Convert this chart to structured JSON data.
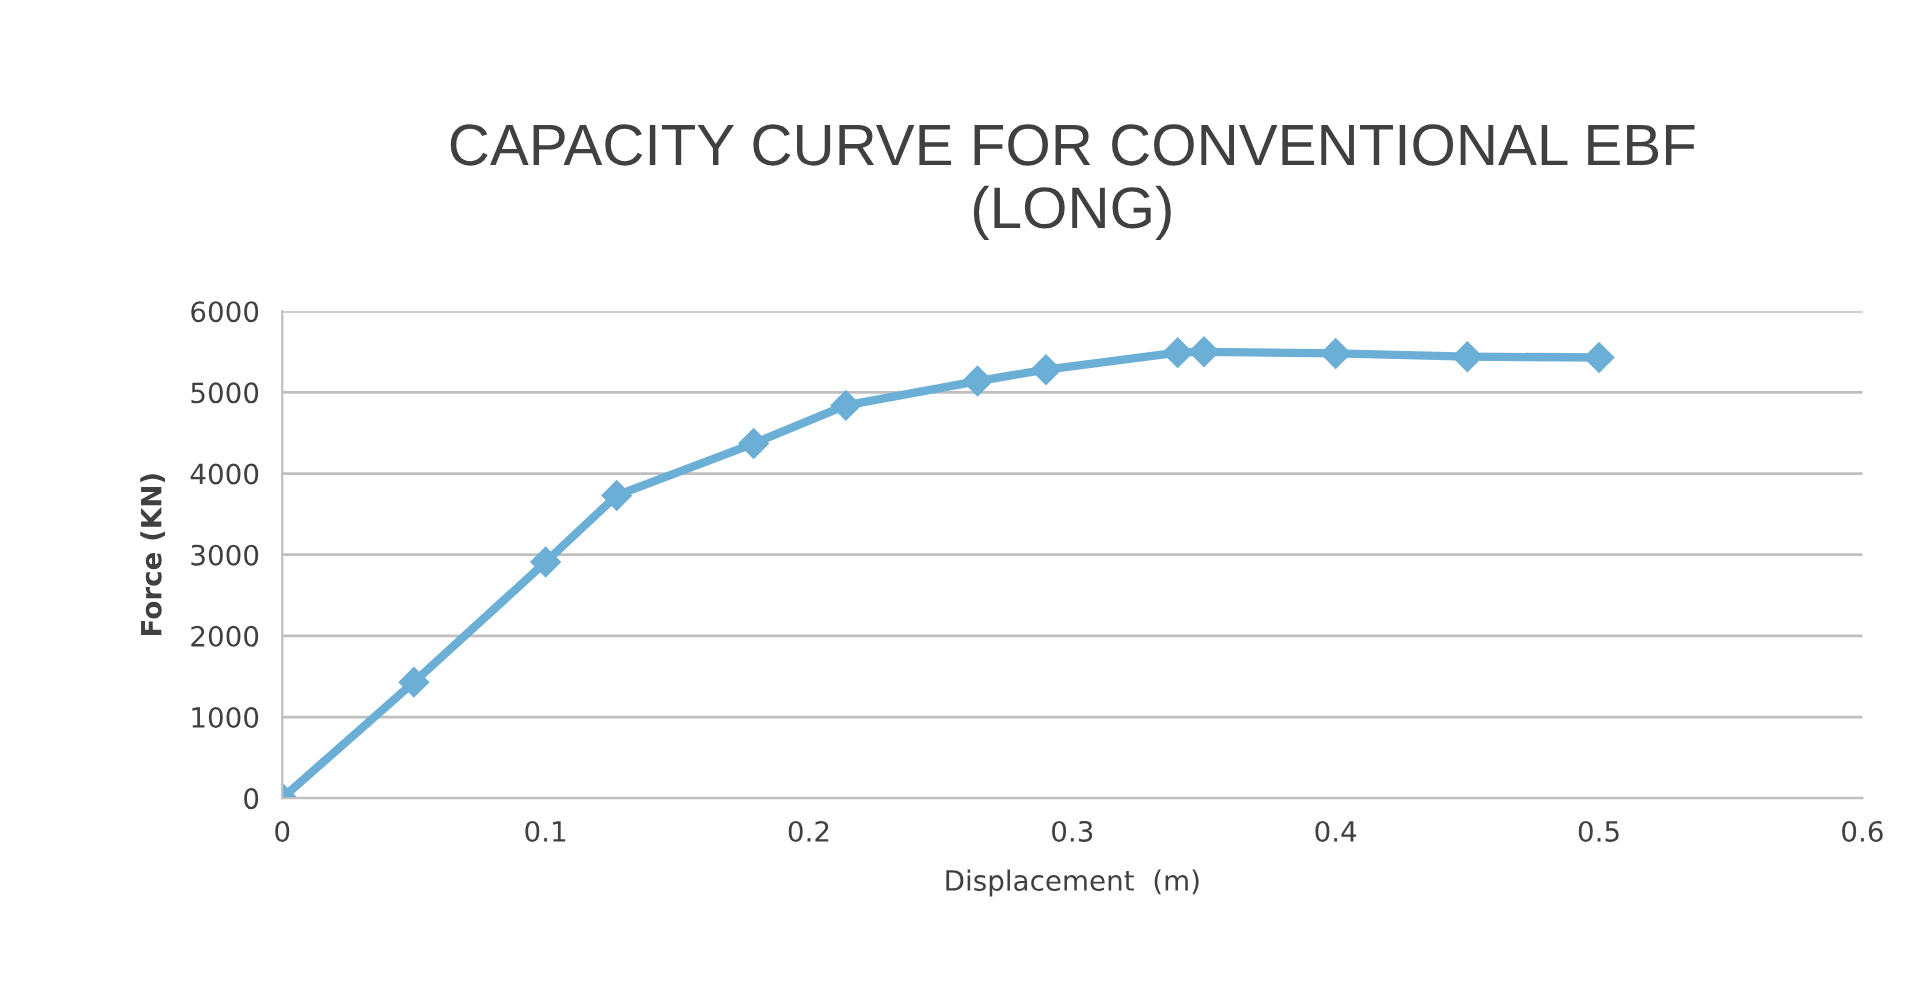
{
  "chart_data": {
    "type": "line",
    "title": "CAPACITY CURVE FOR CONVENTIONAL EBF\n(LONG)",
    "xlabel": "Displacement  (m)",
    "ylabel": "Force (KN)",
    "x": [
      0,
      0.05,
      0.1,
      0.127,
      0.179,
      0.214,
      0.264,
      0.29,
      0.34,
      0.35,
      0.4,
      0.45,
      0.5
    ],
    "series": [
      {
        "color": "#6baed6",
        "values": [
          0,
          1430,
          2910,
          3730,
          4370,
          4840,
          5140,
          5280,
          5490,
          5500,
          5480,
          5440,
          5430
        ]
      }
    ],
    "xlim": [
      0,
      0.6
    ],
    "xticks": [
      0,
      0.1,
      0.2,
      0.3,
      0.4,
      0.5,
      0.6
    ],
    "ylim": [
      0,
      6000
    ],
    "yticks": [
      0,
      1000,
      2000,
      3000,
      4000,
      5000,
      6000
    ],
    "grid": "y",
    "marker": "diamond",
    "line_style": "solid",
    "legend": false
  }
}
